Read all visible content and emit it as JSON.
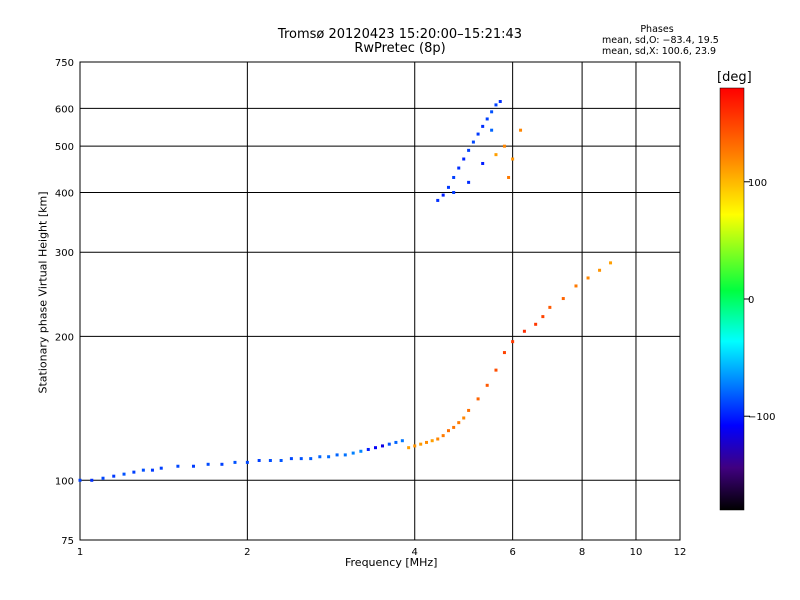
{
  "title_line1": "Tromsø 20120423 15:20:00–15:21:43",
  "title_line2": "RwPretec (8p)",
  "phases": {
    "heading": "Phases",
    "line_o": "mean, sd,O: −83.4, 19.5",
    "line_x": "mean, sd,X: 100.6, 23.9"
  },
  "colorbar": {
    "unit_label": "[deg]",
    "ticks": [
      "100",
      "0",
      "−100"
    ],
    "range": [
      -180,
      180
    ],
    "tick_values": [
      100,
      0,
      -100
    ]
  },
  "chart_data": {
    "type": "scatter",
    "xlabel": "Frequency [MHz]",
    "ylabel": "Stationary phase Virtual Height [km]",
    "x_scale": "log",
    "y_scale": "log",
    "xlim": [
      1,
      12
    ],
    "ylim": [
      75,
      750
    ],
    "grid": true,
    "x_ticks": [
      1,
      2,
      4,
      6,
      8,
      10,
      12
    ],
    "x_tick_labels": [
      "1",
      "2",
      "4",
      "6",
      "8",
      "10",
      "12"
    ],
    "y_ticks": [
      75,
      100,
      200,
      300,
      400,
      500,
      600,
      750
    ],
    "y_tick_labels": [
      "75",
      "100",
      "200",
      "300",
      "400",
      "500",
      "600",
      "750"
    ],
    "color_by": "phase [deg]",
    "series": [
      {
        "values": [
          [
            1.0,
            100,
            -90
          ],
          [
            1.05,
            100,
            -95
          ],
          [
            1.1,
            101,
            -88
          ],
          [
            1.15,
            102,
            -92
          ],
          [
            1.2,
            103,
            -85
          ],
          [
            1.25,
            104,
            -90
          ],
          [
            1.3,
            105,
            -86
          ],
          [
            1.35,
            105,
            -92
          ],
          [
            1.4,
            106,
            -90
          ],
          [
            1.5,
            107,
            -88
          ],
          [
            1.6,
            107,
            -91
          ],
          [
            1.7,
            108,
            -87
          ],
          [
            1.8,
            108,
            -90
          ],
          [
            1.9,
            109,
            -85
          ],
          [
            2.0,
            109,
            -88
          ],
          [
            2.1,
            110,
            -90
          ],
          [
            2.2,
            110,
            -86
          ],
          [
            2.3,
            110,
            -84
          ],
          [
            2.4,
            111,
            -88
          ],
          [
            2.5,
            111,
            -85
          ],
          [
            2.6,
            111,
            -82
          ],
          [
            2.7,
            112,
            -80
          ],
          [
            2.8,
            112,
            -78
          ],
          [
            2.9,
            113,
            -80
          ],
          [
            3.0,
            113,
            -76
          ],
          [
            3.1,
            114,
            -72
          ],
          [
            3.2,
            115,
            -70
          ],
          [
            3.3,
            116,
            -100
          ],
          [
            3.4,
            117,
            -110
          ],
          [
            3.5,
            118,
            -115
          ],
          [
            3.6,
            119,
            -85
          ],
          [
            3.7,
            120,
            -80
          ],
          [
            3.8,
            121,
            -75
          ],
          [
            3.9,
            117,
            110
          ],
          [
            4.0,
            118,
            115
          ],
          [
            4.1,
            119,
            112
          ],
          [
            4.2,
            120,
            118
          ],
          [
            4.3,
            121,
            110
          ],
          [
            4.4,
            122,
            120
          ],
          [
            4.5,
            124,
            125
          ],
          [
            4.6,
            127,
            130
          ],
          [
            4.7,
            129,
            128
          ],
          [
            4.8,
            132,
            125
          ],
          [
            4.9,
            135,
            120
          ],
          [
            5.0,
            140,
            130
          ],
          [
            5.2,
            148,
            135
          ],
          [
            5.4,
            158,
            140
          ],
          [
            5.6,
            170,
            145
          ],
          [
            5.8,
            185,
            150
          ],
          [
            6.0,
            195,
            155
          ],
          [
            6.3,
            205,
            160
          ],
          [
            6.6,
            212,
            155
          ],
          [
            6.8,
            220,
            150
          ],
          [
            7.0,
            230,
            140
          ],
          [
            7.4,
            240,
            135
          ],
          [
            7.8,
            255,
            125
          ],
          [
            8.2,
            265,
            120
          ],
          [
            8.6,
            275,
            115
          ],
          [
            9.0,
            285,
            110
          ]
        ]
      },
      {
        "values": [
          [
            4.4,
            385,
            -95
          ],
          [
            4.5,
            395,
            -100
          ],
          [
            4.6,
            410,
            -92
          ],
          [
            4.7,
            430,
            -90
          ],
          [
            4.8,
            450,
            -95
          ],
          [
            4.9,
            470,
            -98
          ],
          [
            5.0,
            490,
            -90
          ],
          [
            5.1,
            510,
            -88
          ],
          [
            5.2,
            530,
            -92
          ],
          [
            5.3,
            550,
            -95
          ],
          [
            5.4,
            570,
            -90
          ],
          [
            5.5,
            590,
            -85
          ],
          [
            5.6,
            610,
            -90
          ],
          [
            5.7,
            620,
            -95
          ],
          [
            5.5,
            540,
            -80
          ],
          [
            5.3,
            460,
            -100
          ],
          [
            5.0,
            420,
            -96
          ],
          [
            4.7,
            400,
            -92
          ],
          [
            5.6,
            480,
            110
          ],
          [
            5.8,
            500,
            120
          ],
          [
            6.0,
            470,
            115
          ],
          [
            5.9,
            430,
            125
          ],
          [
            6.2,
            540,
            120
          ]
        ]
      }
    ]
  }
}
